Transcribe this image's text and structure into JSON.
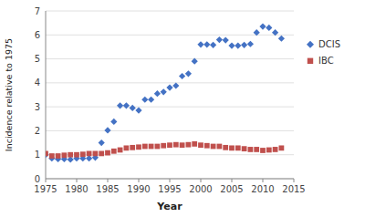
{
  "chart_data": {
    "type": "scatter",
    "xlabel": "Year",
    "ylabel": "Incidence relative to 1975",
    "xlim": [
      1975,
      2015
    ],
    "ylim": [
      0,
      7
    ],
    "xticks": [
      1975,
      1980,
      1985,
      1990,
      1995,
      2000,
      2005,
      2010,
      2015
    ],
    "yticks": [
      0,
      1,
      2,
      3,
      4,
      5,
      6,
      7
    ],
    "grid": "y",
    "legend": "right",
    "x": [
      1975,
      1976,
      1977,
      1978,
      1979,
      1980,
      1981,
      1982,
      1983,
      1984,
      1985,
      1986,
      1987,
      1988,
      1989,
      1990,
      1991,
      1992,
      1993,
      1994,
      1995,
      1996,
      1997,
      1998,
      1999,
      2000,
      2001,
      2002,
      2003,
      2004,
      2005,
      2006,
      2007,
      2008,
      2009,
      2010,
      2011,
      2012,
      2013
    ],
    "series": [
      {
        "name": "DCIS",
        "color": "#4472C4",
        "marker": "diamond",
        "values": [
          1.0,
          0.85,
          0.82,
          0.82,
          0.8,
          0.85,
          0.85,
          0.85,
          0.88,
          1.5,
          2.02,
          2.38,
          3.05,
          3.05,
          2.95,
          2.85,
          3.3,
          3.3,
          3.55,
          3.62,
          3.8,
          3.88,
          4.28,
          4.38,
          4.9,
          5.6,
          5.6,
          5.58,
          5.8,
          5.78,
          5.55,
          5.55,
          5.58,
          5.62,
          6.1,
          6.35,
          6.3,
          6.1,
          5.85
        ]
      },
      {
        "name": "IBC",
        "color": "#C0504D",
        "marker": "square",
        "values": [
          1.05,
          0.95,
          0.95,
          0.98,
          1.0,
          1.0,
          1.02,
          1.05,
          1.05,
          1.05,
          1.08,
          1.15,
          1.2,
          1.28,
          1.3,
          1.32,
          1.35,
          1.35,
          1.35,
          1.38,
          1.4,
          1.42,
          1.4,
          1.42,
          1.45,
          1.4,
          1.38,
          1.35,
          1.35,
          1.3,
          1.28,
          1.28,
          1.25,
          1.22,
          1.22,
          1.18,
          1.2,
          1.22,
          1.28
        ]
      }
    ]
  }
}
